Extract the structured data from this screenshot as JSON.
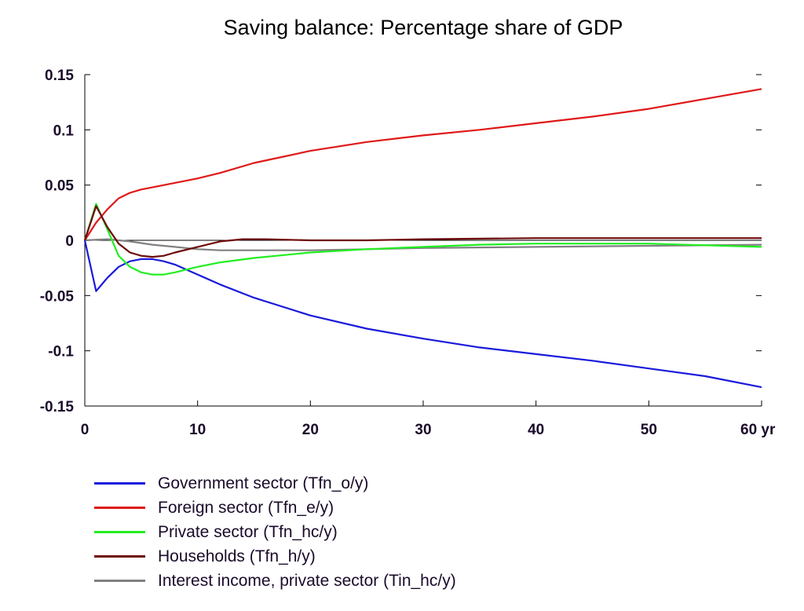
{
  "chart_data": {
    "type": "line",
    "title": "Saving balance: Percentage share of GDP",
    "xlabel": "",
    "ylabel": "",
    "xlim": [
      0,
      60
    ],
    "ylim": [
      -0.15,
      0.15
    ],
    "x_ticks": [
      0,
      10,
      20,
      30,
      40,
      50,
      60
    ],
    "x_tick_labels": [
      "0",
      "10",
      "20",
      "30",
      "40",
      "50",
      "60 yr"
    ],
    "y_ticks": [
      0.15,
      0.1,
      0.05,
      0,
      -0.05,
      -0.1,
      -0.15
    ],
    "y_tick_labels": [
      "0.15",
      "0.1",
      "0.05",
      "0",
      "-0.05",
      "-0.1",
      "-0.15"
    ],
    "grid": false,
    "zero_line": true,
    "legend_position": "bottom",
    "series": [
      {
        "name": "Government sector (Tfn_o/y)",
        "color": "#1a1adc",
        "x": [
          0,
          1,
          2,
          3,
          4,
          5,
          6,
          7,
          8,
          10,
          12,
          15,
          20,
          25,
          30,
          35,
          40,
          45,
          50,
          55,
          60
        ],
        "y": [
          0,
          -0.046,
          -0.034,
          -0.024,
          -0.019,
          -0.017,
          -0.017,
          -0.019,
          -0.022,
          -0.031,
          -0.04,
          -0.052,
          -0.068,
          -0.08,
          -0.089,
          -0.097,
          -0.103,
          -0.109,
          -0.116,
          -0.123,
          -0.133
        ]
      },
      {
        "name": "Foreign sector (Tfn_e/y)",
        "color": "#e01818",
        "x": [
          0,
          1,
          2,
          3,
          4,
          5,
          7,
          10,
          12,
          15,
          20,
          25,
          30,
          35,
          40,
          45,
          50,
          55,
          60
        ],
        "y": [
          0,
          0.016,
          0.028,
          0.038,
          0.043,
          0.046,
          0.05,
          0.056,
          0.061,
          0.07,
          0.081,
          0.089,
          0.095,
          0.1,
          0.106,
          0.112,
          0.119,
          0.128,
          0.137
        ]
      },
      {
        "name": "Private sector (Tfn_hc/y)",
        "color": "#22ee22",
        "x": [
          0,
          1,
          2,
          3,
          4,
          5,
          6,
          7,
          8,
          10,
          12,
          15,
          20,
          25,
          30,
          35,
          40,
          50,
          60
        ],
        "y": [
          0,
          0.033,
          0.01,
          -0.014,
          -0.024,
          -0.029,
          -0.031,
          -0.031,
          -0.029,
          -0.024,
          -0.02,
          -0.016,
          -0.011,
          -0.008,
          -0.006,
          -0.004,
          -0.003,
          -0.003,
          -0.006
        ]
      },
      {
        "name": "Households (Tfn_h/y)",
        "color": "#6e0a0a",
        "x": [
          0,
          1,
          2,
          3,
          4,
          5,
          6,
          7,
          8,
          10,
          12,
          14,
          16,
          20,
          25,
          30,
          40,
          50,
          60
        ],
        "y": [
          0,
          0.031,
          0.012,
          -0.003,
          -0.011,
          -0.014,
          -0.015,
          -0.014,
          -0.011,
          -0.006,
          -0.001,
          0.001,
          0.001,
          0,
          0,
          0.001,
          0.002,
          0.002,
          0.002
        ]
      },
      {
        "name": "Interest income, private sector (Tin_hc/y)",
        "color": "#808080",
        "x": [
          0,
          2,
          4,
          6,
          8,
          10,
          12,
          15,
          20,
          25,
          30,
          40,
          50,
          60
        ],
        "y": [
          0,
          0.001,
          -0.001,
          -0.004,
          -0.006,
          -0.008,
          -0.009,
          -0.009,
          -0.009,
          -0.008,
          -0.007,
          -0.006,
          -0.005,
          -0.004
        ]
      }
    ]
  }
}
